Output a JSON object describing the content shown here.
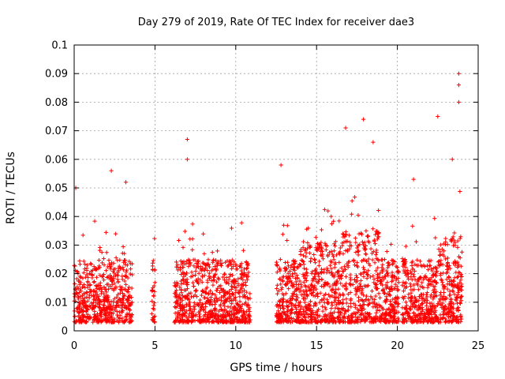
{
  "chart_data": {
    "type": "scatter",
    "title": "Day 279 of 2019, Rate Of TEC Index for receiver dae3",
    "xlabel": "GPS time / hours",
    "ylabel": "ROTI / TECUs",
    "xlim": [
      0,
      25
    ],
    "ylim": [
      0,
      0.1
    ],
    "xticks": [
      0,
      5,
      10,
      15,
      20,
      25
    ],
    "yticks": [
      0,
      0.01,
      0.02,
      0.03,
      0.04,
      0.05,
      0.06,
      0.07,
      0.08,
      0.09,
      0.1
    ],
    "xtick_labels": [
      "0",
      "5",
      "10",
      "15",
      "20",
      "25"
    ],
    "ytick_labels": [
      "0",
      "0.01",
      "0.02",
      "0.03",
      "0.04",
      "0.05",
      "0.06",
      "0.07",
      "0.08",
      "0.09",
      "0.1"
    ],
    "grid": true,
    "marker": "plus",
    "series": [
      {
        "color": "#ff0000",
        "segments": [
          [
            0.0,
            3.6
          ],
          [
            4.8,
            5.0
          ],
          [
            6.2,
            10.9
          ],
          [
            12.5,
            20.1
          ],
          [
            20.3,
            24.0
          ]
        ],
        "notable_points": [
          {
            "x": 0.1,
            "y": 0.05
          },
          {
            "x": 2.3,
            "y": 0.056
          },
          {
            "x": 3.2,
            "y": 0.052
          },
          {
            "x": 7.0,
            "y": 0.067
          },
          {
            "x": 7.0,
            "y": 0.06
          },
          {
            "x": 12.8,
            "y": 0.058
          },
          {
            "x": 16.8,
            "y": 0.071
          },
          {
            "x": 17.9,
            "y": 0.074
          },
          {
            "x": 18.5,
            "y": 0.066
          },
          {
            "x": 22.5,
            "y": 0.075
          },
          {
            "x": 23.8,
            "y": 0.09
          },
          {
            "x": 23.8,
            "y": 0.086
          },
          {
            "x": 23.8,
            "y": 0.08
          },
          {
            "x": 23.4,
            "y": 0.06
          },
          {
            "x": 21.0,
            "y": 0.053
          }
        ]
      }
    ]
  }
}
